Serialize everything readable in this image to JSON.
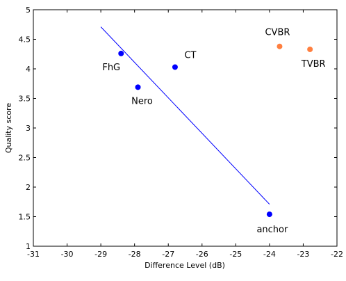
{
  "chart_data": {
    "type": "scatter",
    "title": "",
    "xlabel": "Difference Level (dB)",
    "ylabel": "Quality score",
    "xlim": [
      -31,
      -22
    ],
    "ylim": [
      1,
      5
    ],
    "xticks": [
      -31,
      -30,
      -29,
      -28,
      -27,
      -26,
      -25,
      -24,
      -23,
      -22
    ],
    "yticks": [
      1,
      1.5,
      2,
      2.5,
      3,
      3.5,
      4,
      4.5,
      5
    ],
    "xtick_labels": [
      "-31",
      "-30",
      "-29",
      "-28",
      "-27",
      "-26",
      "-25",
      "-24",
      "-23",
      "-22"
    ],
    "ytick_labels": [
      "1",
      "1.5",
      "2",
      "2.5",
      "3",
      "3.5",
      "4",
      "4.5",
      "5"
    ],
    "grid": false,
    "series": [
      {
        "color": "#0000ff",
        "points": [
          {
            "label": "FhG",
            "x": -28.4,
            "y": 4.26
          },
          {
            "label": "Nero",
            "x": -27.9,
            "y": 3.69
          },
          {
            "label": "CT",
            "x": -26.8,
            "y": 4.03
          },
          {
            "label": "anchor",
            "x": -24.0,
            "y": 1.54
          }
        ]
      },
      {
        "color": "#ff7f3f",
        "points": [
          {
            "label": "CVBR",
            "x": -23.7,
            "y": 4.38
          },
          {
            "label": "TVBR",
            "x": -22.8,
            "y": 4.33
          }
        ]
      }
    ],
    "fit_line": {
      "color": "#0000ff",
      "x": [
        -29.0,
        -24.0
      ],
      "y": [
        4.71,
        1.71
      ]
    }
  }
}
